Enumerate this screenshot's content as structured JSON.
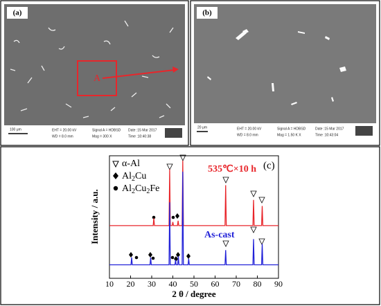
{
  "panels": [
    {
      "label": "(a)",
      "region": "A",
      "scale": "100 μm",
      "eht": "EHT = 20.00 kV",
      "wd": "WD = 8.0 mm",
      "signal": "Signal A = HDBSD",
      "mag": "Mag = 300 X",
      "date": "Date :15 Mar 2017",
      "time": "Time :10:40:38"
    },
    {
      "label": "(b)",
      "scale": "20 μm",
      "eht": "EHT = 20.00 kV",
      "wd": "WD = 8.0 mm",
      "signal": "Signal A = HDBSD",
      "mag": "Mag = 1.50 K X",
      "date": "Date :15 Mar 2017",
      "time": "Time :10:43:04"
    }
  ],
  "chart_data": {
    "type": "line",
    "panel_label": "(c)",
    "xlabel": "2 θ / degree",
    "ylabel": "Intensity / a.u.",
    "xlim": [
      10,
      90
    ],
    "xticks": [
      10,
      20,
      30,
      40,
      50,
      60,
      70,
      80,
      90
    ],
    "ylim": [
      0,
      100
    ],
    "legend": [
      [
        "α-Al"
      ],
      [
        "Al",
        "2",
        "Cu"
      ],
      [
        "Al",
        "2",
        "Cu",
        "2",
        "Fe"
      ]
    ],
    "series": [
      {
        "name": "535℃×10 h",
        "color": "#e8262b",
        "x": [
          10,
          30.7,
          31,
          31.3,
          38.2,
          38.5,
          38.8,
          39.7,
          40,
          40.3,
          42.2,
          42.5,
          42.8,
          44.4,
          44.7,
          45,
          64.7,
          65,
          65.3,
          77.9,
          78.2,
          78.5,
          82,
          82.3,
          82.6,
          90
        ],
        "values": [
          43,
          43,
          49,
          43,
          43,
          89,
          43,
          43,
          46,
          43,
          43,
          47,
          43,
          43,
          96,
          43,
          43,
          76,
          43,
          43,
          64,
          43,
          43,
          59,
          43,
          43
        ]
      },
      {
        "name": "As-cast",
        "color": "#2323d8",
        "x": [
          10,
          20.2,
          20.5,
          20.8,
          29.2,
          29.5,
          29.8,
          38.2,
          38.5,
          38.8,
          41,
          41.3,
          41.6,
          42.3,
          42.6,
          42.9,
          44.4,
          44.7,
          45,
          47.2,
          47.5,
          47.8,
          64.7,
          65,
          65.3,
          77.9,
          78.2,
          78.5,
          82,
          82.3,
          82.6,
          90
        ],
        "values": [
          11,
          11,
          17,
          11,
          11,
          17,
          11,
          11,
          62,
          11,
          11,
          15,
          11,
          11,
          18,
          11,
          11,
          87,
          11,
          11,
          16,
          11,
          11,
          23,
          11,
          11,
          32,
          11,
          11,
          28,
          11,
          11
        ]
      }
    ]
  }
}
